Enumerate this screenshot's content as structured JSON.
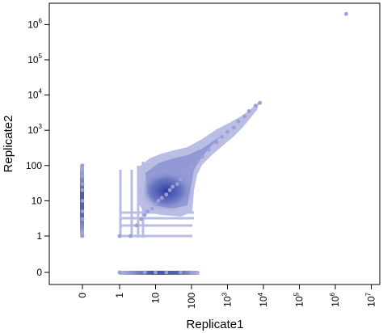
{
  "chart_data": {
    "type": "scatter",
    "title": "",
    "xlabel": "Replicate1",
    "ylabel": "Replicate2",
    "x_scale": "log-plus-zero",
    "y_scale": "log-plus-zero",
    "x_ticks": [
      {
        "value": 0,
        "base": "0",
        "exp": ""
      },
      {
        "value": 1,
        "base": "1",
        "exp": ""
      },
      {
        "value": 10,
        "base": "10",
        "exp": ""
      },
      {
        "value": 100,
        "base": "100",
        "exp": ""
      },
      {
        "value": 1000,
        "base": "10",
        "exp": "3"
      },
      {
        "value": 10000,
        "base": "10",
        "exp": "4"
      },
      {
        "value": 100000,
        "base": "10",
        "exp": "5"
      },
      {
        "value": 1000000,
        "base": "10",
        "exp": "6"
      },
      {
        "value": 10000000,
        "base": "10",
        "exp": "7"
      }
    ],
    "y_ticks": [
      {
        "value": 0,
        "base": "0",
        "exp": ""
      },
      {
        "value": 1,
        "base": "1",
        "exp": ""
      },
      {
        "value": 10,
        "base": "10",
        "exp": ""
      },
      {
        "value": 100,
        "base": "100",
        "exp": ""
      },
      {
        "value": 1000,
        "base": "10",
        "exp": "3"
      },
      {
        "value": 10000,
        "base": "10",
        "exp": "4"
      },
      {
        "value": 100000,
        "base": "10",
        "exp": "5"
      },
      {
        "value": 1000000,
        "base": "10",
        "exp": "6"
      }
    ],
    "point_color": "#9aa0d6",
    "dense_color": "#3a4aa8",
    "points": [
      [
        2000000,
        2000000
      ],
      [
        8000,
        6000
      ],
      [
        6000,
        5000
      ],
      [
        4000,
        3500
      ],
      [
        3000,
        2500
      ],
      [
        2000,
        1800
      ],
      [
        1500,
        1200
      ],
      [
        1000,
        900
      ],
      [
        700,
        650
      ],
      [
        500,
        450
      ],
      [
        300,
        280
      ],
      [
        200,
        180
      ],
      [
        150,
        140
      ],
      [
        100,
        95
      ],
      [
        80,
        60
      ],
      [
        50,
        40
      ],
      [
        40,
        30
      ],
      [
        30,
        25
      ],
      [
        25,
        20
      ],
      [
        20,
        15
      ],
      [
        15,
        12
      ],
      [
        12,
        10
      ],
      [
        10,
        8
      ],
      [
        8,
        6
      ],
      [
        6,
        5
      ],
      [
        5,
        4
      ],
      [
        4,
        3
      ],
      [
        3,
        2
      ],
      [
        2,
        1
      ],
      [
        1,
        1
      ],
      [
        0,
        100
      ],
      [
        0,
        50
      ],
      [
        0,
        30
      ],
      [
        0,
        20
      ],
      [
        0,
        10
      ],
      [
        0,
        5
      ],
      [
        0,
        3
      ],
      [
        0,
        1
      ],
      [
        1,
        0
      ],
      [
        5,
        0
      ],
      [
        10,
        0
      ],
      [
        20,
        0
      ],
      [
        50,
        0
      ],
      [
        100,
        0
      ]
    ]
  }
}
